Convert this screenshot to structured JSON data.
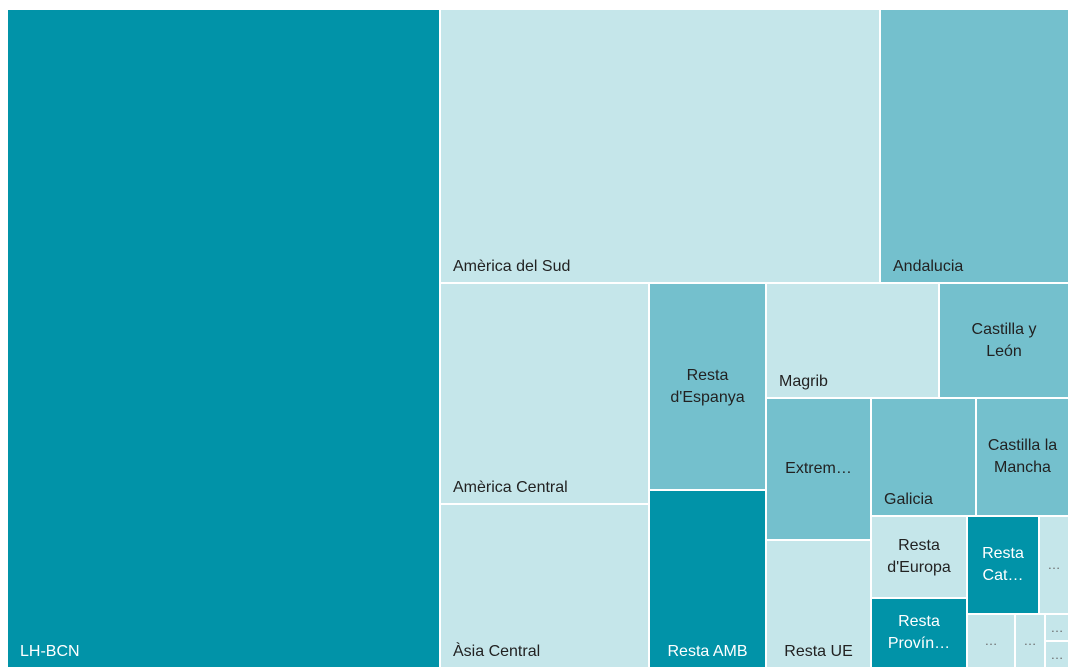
{
  "chart_data": {
    "type": "treemap",
    "colors": {
      "dark": "#0193a8",
      "mid": "#74c0cd",
      "light": "#c5e6ea"
    },
    "tiles": [
      {
        "key": "lhbcn",
        "label": "LH-BCN",
        "shade": "dark"
      },
      {
        "key": "asud",
        "label": "Amèrica del Sud",
        "shade": "light"
      },
      {
        "key": "and",
        "label": "Andalucia",
        "shade": "mid"
      },
      {
        "key": "acen",
        "label": "Amèrica Central",
        "shade": "light"
      },
      {
        "key": "asia",
        "label": "Àsia Central",
        "shade": "light"
      },
      {
        "key": "resp",
        "label": "Resta\nd'Espanya",
        "shade": "mid"
      },
      {
        "key": "ramb",
        "label": "Resta AMB",
        "shade": "dark"
      },
      {
        "key": "mag",
        "label": "Magrib",
        "shade": "light"
      },
      {
        "key": "cyl",
        "label": "Castilla y\nLeón",
        "shade": "mid"
      },
      {
        "key": "ext",
        "label": "Extrem…",
        "shade": "mid"
      },
      {
        "key": "gal",
        "label": "Galicia",
        "shade": "mid"
      },
      {
        "key": "clm",
        "label": "Castilla la\nMancha",
        "shade": "mid"
      },
      {
        "key": "rue",
        "label": "Resta UE",
        "shade": "light"
      },
      {
        "key": "reu",
        "label": "Resta\nd'Europa",
        "shade": "light"
      },
      {
        "key": "rcat",
        "label": "Resta\nCat…",
        "shade": "dark"
      },
      {
        "key": "rprov",
        "label": "Resta\nProvín…",
        "shade": "dark"
      },
      {
        "key": "e1",
        "label": "…",
        "shade": "light"
      },
      {
        "key": "e2",
        "label": "…",
        "shade": "light"
      },
      {
        "key": "e3",
        "label": "…",
        "shade": "light"
      },
      {
        "key": "e4",
        "label": "…",
        "shade": "light"
      },
      {
        "key": "e5",
        "label": "…",
        "shade": "light"
      }
    ]
  }
}
